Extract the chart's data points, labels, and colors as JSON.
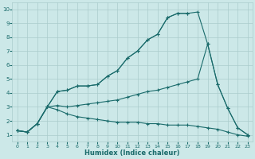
{
  "xlabel": "Humidex (Indice chaleur)",
  "bg_color": "#cce8e8",
  "grid_color": "#aacccc",
  "line_color": "#1a6b6b",
  "xlim": [
    -0.5,
    23.5
  ],
  "ylim": [
    0.5,
    10.5
  ],
  "xticks": [
    0,
    1,
    2,
    3,
    4,
    5,
    6,
    7,
    8,
    9,
    10,
    11,
    12,
    13,
    14,
    15,
    16,
    17,
    18,
    19,
    20,
    21,
    22,
    23
  ],
  "yticks": [
    1,
    2,
    3,
    4,
    5,
    6,
    7,
    8,
    9,
    10
  ],
  "lines": [
    {
      "x": [
        0,
        1,
        2,
        3,
        4,
        5,
        6,
        7,
        8,
        9,
        10,
        11,
        12,
        13,
        14,
        15,
        16,
        17
      ],
      "y": [
        1.3,
        1.2,
        1.8,
        3.0,
        4.1,
        4.2,
        4.5,
        4.5,
        4.6,
        5.2,
        5.6,
        6.5,
        7.0,
        7.8,
        8.2,
        9.4,
        9.7,
        9.7
      ]
    },
    {
      "x": [
        0,
        1,
        2,
        3,
        4,
        5,
        6,
        7,
        8,
        9,
        10,
        11,
        12,
        13,
        14,
        15,
        16,
        17,
        18,
        19,
        20,
        21,
        22,
        23
      ],
      "y": [
        1.3,
        1.2,
        1.8,
        3.0,
        4.1,
        4.2,
        4.5,
        4.5,
        4.6,
        5.2,
        5.6,
        6.5,
        7.0,
        7.8,
        8.2,
        9.4,
        9.7,
        9.7,
        9.8,
        7.5,
        4.6,
        2.9,
        1.5,
        1.0
      ]
    },
    {
      "x": [
        0,
        1,
        2,
        3,
        4,
        5,
        6,
        7,
        8,
        9,
        10,
        11,
        12,
        13,
        14,
        15,
        16,
        17,
        18,
        19,
        20,
        21,
        22,
        23
      ],
      "y": [
        1.3,
        1.2,
        1.8,
        3.0,
        3.1,
        3.0,
        3.1,
        3.2,
        3.3,
        3.4,
        3.5,
        3.7,
        3.9,
        4.1,
        4.2,
        4.4,
        4.6,
        4.8,
        5.0,
        7.5,
        4.6,
        2.9,
        1.5,
        1.0
      ]
    },
    {
      "x": [
        0,
        1,
        2,
        3,
        4,
        5,
        6,
        7,
        8,
        9,
        10,
        11,
        12,
        13,
        14,
        15,
        16,
        17,
        18,
        19,
        20,
        21,
        22,
        23
      ],
      "y": [
        1.3,
        1.2,
        1.8,
        3.0,
        2.8,
        2.5,
        2.3,
        2.2,
        2.1,
        2.0,
        1.9,
        1.9,
        1.9,
        1.8,
        1.8,
        1.7,
        1.7,
        1.7,
        1.6,
        1.5,
        1.4,
        1.2,
        1.0,
        0.9
      ]
    }
  ]
}
